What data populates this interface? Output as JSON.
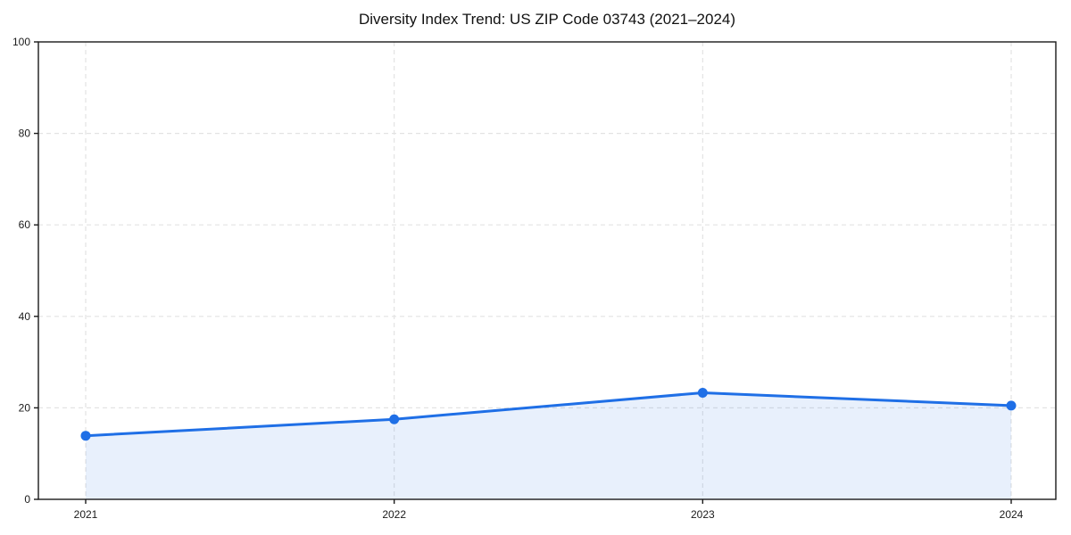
{
  "page": {
    "background": "#ffffff"
  },
  "chart_data": {
    "type": "area",
    "title": "Diversity Index Trend: US ZIP Code 03743 (2021–2024)",
    "x": [
      "2021",
      "2022",
      "2023",
      "2024"
    ],
    "series": [
      {
        "name": "Diversity Index",
        "values": [
          13.9,
          17.5,
          23.3,
          20.5
        ]
      }
    ],
    "xlabel": "",
    "ylabel": "",
    "ylim": [
      0,
      100
    ],
    "yticks": [
      0,
      20,
      40,
      60,
      80,
      100
    ],
    "grid": true,
    "grid_style": "dashed",
    "legend_position": "none",
    "colors": {
      "line": "#1f6fe6",
      "marker": "#1f6fe6",
      "fill": "rgba(31,111,230,0.10)",
      "grid": "#e3e3e3",
      "axis": "#1a1a1a",
      "tick_text": "#1a1a1a"
    }
  }
}
